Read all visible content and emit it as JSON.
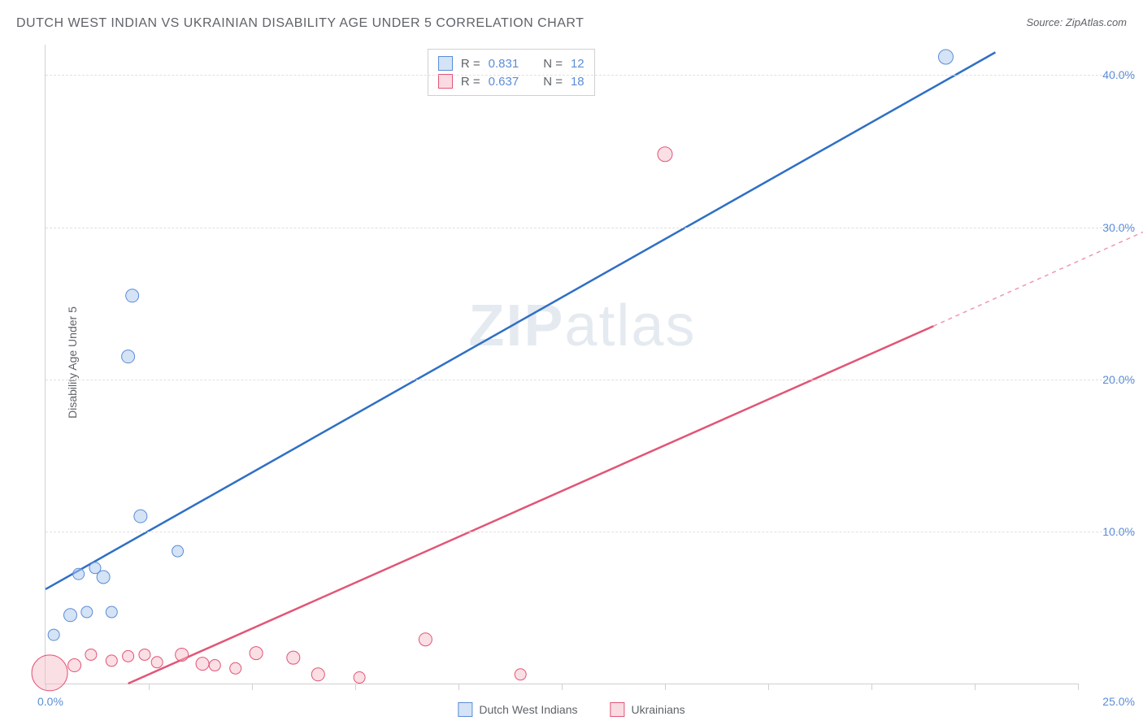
{
  "title": "DUTCH WEST INDIAN VS UKRAINIAN DISABILITY AGE UNDER 5 CORRELATION CHART",
  "source": "Source: ZipAtlas.com",
  "ylabel": "Disability Age Under 5",
  "watermark_bold": "ZIP",
  "watermark_light": "atlas",
  "chart": {
    "type": "scatter",
    "xlim": [
      0,
      25
    ],
    "ylim": [
      0,
      42
    ],
    "yticks": [
      10,
      20,
      30,
      40
    ],
    "ytick_labels": [
      "10.0%",
      "20.0%",
      "30.0%",
      "40.0%"
    ],
    "xticks": [
      0,
      2.5,
      5,
      7.5,
      10,
      12.5,
      15,
      17.5,
      20,
      22.5,
      25
    ],
    "x_origin_label": "0.0%",
    "x_end_label": "25.0%",
    "grid_color": "#e0e0e0",
    "axis_color": "#d0d0d0",
    "background_color": "#ffffff",
    "series": [
      {
        "name": "Dutch West Indians",
        "label": "Dutch West Indians",
        "marker_color": "#a9c7ec",
        "marker_border": "#5b8dd6",
        "marker_fill_opacity": 0.5,
        "line_color": "#2f6fc5",
        "line_width": 2.5,
        "line_start": [
          0,
          6.2
        ],
        "line_end": [
          23,
          41.5
        ],
        "line_dash_tail": false,
        "R": "0.831",
        "N": "12",
        "points": [
          {
            "x": 0.2,
            "y": 3.2,
            "r": 7
          },
          {
            "x": 0.6,
            "y": 4.5,
            "r": 8
          },
          {
            "x": 1.0,
            "y": 4.7,
            "r": 7
          },
          {
            "x": 1.6,
            "y": 4.7,
            "r": 7
          },
          {
            "x": 0.8,
            "y": 7.2,
            "r": 7
          },
          {
            "x": 1.4,
            "y": 7.0,
            "r": 8
          },
          {
            "x": 1.2,
            "y": 7.6,
            "r": 7
          },
          {
            "x": 2.3,
            "y": 11.0,
            "r": 8
          },
          {
            "x": 3.2,
            "y": 8.7,
            "r": 7
          },
          {
            "x": 2.0,
            "y": 21.5,
            "r": 8
          },
          {
            "x": 2.1,
            "y": 25.5,
            "r": 8
          },
          {
            "x": 21.8,
            "y": 41.2,
            "r": 9
          }
        ]
      },
      {
        "name": "Ukrainians",
        "label": "Ukrainians",
        "marker_color": "#f5b7c5",
        "marker_border": "#e25577",
        "marker_fill_opacity": 0.45,
        "line_color": "#e25577",
        "line_width": 2.5,
        "line_start": [
          2.0,
          0
        ],
        "line_end": [
          21.5,
          23.5
        ],
        "line_dash_tail": true,
        "dash_tail_end": [
          27,
          30.2
        ],
        "R": "0.637",
        "N": "18",
        "points": [
          {
            "x": 0.1,
            "y": 0.7,
            "r": 22
          },
          {
            "x": 0.7,
            "y": 1.2,
            "r": 8
          },
          {
            "x": 1.1,
            "y": 1.9,
            "r": 7
          },
          {
            "x": 1.6,
            "y": 1.5,
            "r": 7
          },
          {
            "x": 2.0,
            "y": 1.8,
            "r": 7
          },
          {
            "x": 2.4,
            "y": 1.9,
            "r": 7
          },
          {
            "x": 2.7,
            "y": 1.4,
            "r": 7
          },
          {
            "x": 3.3,
            "y": 1.9,
            "r": 8
          },
          {
            "x": 3.8,
            "y": 1.3,
            "r": 8
          },
          {
            "x": 4.1,
            "y": 1.2,
            "r": 7
          },
          {
            "x": 4.6,
            "y": 1.0,
            "r": 7
          },
          {
            "x": 5.1,
            "y": 2.0,
            "r": 8
          },
          {
            "x": 6.0,
            "y": 1.7,
            "r": 8
          },
          {
            "x": 6.6,
            "y": 0.6,
            "r": 8
          },
          {
            "x": 7.6,
            "y": 0.4,
            "r": 7
          },
          {
            "x": 9.2,
            "y": 2.9,
            "r": 8
          },
          {
            "x": 11.5,
            "y": 0.6,
            "r": 7
          },
          {
            "x": 15.0,
            "y": 34.8,
            "r": 9
          }
        ]
      }
    ],
    "stats_label_R": "R  =",
    "stats_label_N": "N  =",
    "title_fontsize": 16,
    "label_fontsize": 14,
    "tick_fontsize": 14
  },
  "bottom_legend": {
    "items": [
      {
        "label": "Dutch West Indians",
        "fill": "#a9c7ec",
        "border": "#5b8dd6"
      },
      {
        "label": "Ukrainians",
        "fill": "#f5b7c5",
        "border": "#e25577"
      }
    ]
  }
}
